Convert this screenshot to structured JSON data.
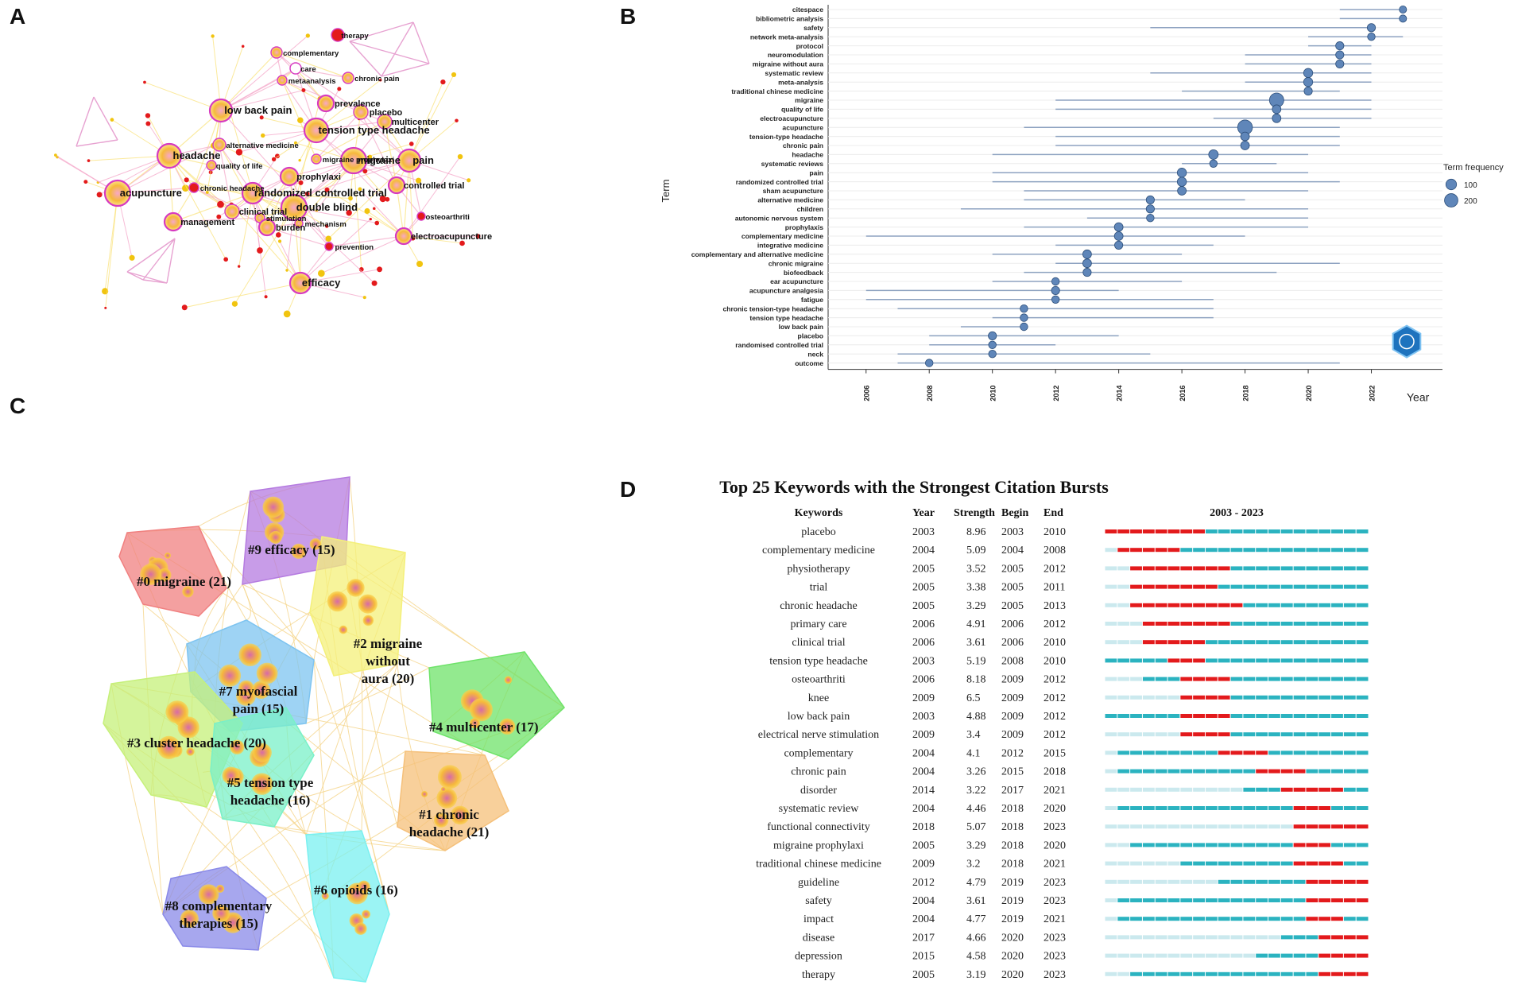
{
  "panels": {
    "a": "A",
    "b": "B",
    "c": "C",
    "d": "D"
  },
  "chart_data": [
    {
      "type": "network",
      "panel": "A",
      "nodes": [
        {
          "label": "therapy",
          "size": 8,
          "color": "#e31a1c"
        },
        {
          "label": "complementary",
          "size": 7,
          "color": "#f6b93b"
        },
        {
          "label": "care",
          "size": 7,
          "color": "#e84393"
        },
        {
          "label": "chronic pain",
          "size": 7,
          "color": "#f6b93b"
        },
        {
          "label": "metaanalysis",
          "size": 6,
          "color": "#f6b93b"
        },
        {
          "label": "low back pain",
          "size": 14,
          "color": "#f6b93b"
        },
        {
          "label": "prevalence",
          "size": 10,
          "color": "#f6b93b"
        },
        {
          "label": "placebo",
          "size": 9,
          "color": "#f6b93b"
        },
        {
          "label": "multicenter",
          "size": 9,
          "color": "#f6b93b"
        },
        {
          "label": "tension type headache",
          "size": 15,
          "color": "#f6b93b"
        },
        {
          "label": "alternative medicine",
          "size": 8,
          "color": "#f6b93b"
        },
        {
          "label": "headache",
          "size": 15,
          "color": "#f6b93b"
        },
        {
          "label": "migraine prophylaxi",
          "size": 6,
          "color": "#f6b93b"
        },
        {
          "label": "migraine",
          "size": 16,
          "color": "#f6b93b"
        },
        {
          "label": "pain",
          "size": 14,
          "color": "#f6b93b"
        },
        {
          "label": "quality of life",
          "size": 6,
          "color": "#f6b93b"
        },
        {
          "label": "prophylaxi",
          "size": 11,
          "color": "#f6b93b"
        },
        {
          "label": "chronic headache",
          "size": 6,
          "color": "#e31a1c"
        },
        {
          "label": "acupuncture",
          "size": 16,
          "color": "#f6b93b"
        },
        {
          "label": "randomized controlled trial",
          "size": 13,
          "color": "#f6b93b"
        },
        {
          "label": "controlled trial",
          "size": 10,
          "color": "#f6b93b"
        },
        {
          "label": "clinical trial",
          "size": 9,
          "color": "#f6b93b"
        },
        {
          "label": "double blind",
          "size": 16,
          "color": "#f6b93b"
        },
        {
          "label": "management",
          "size": 11,
          "color": "#f6b93b"
        },
        {
          "label": "stimulation",
          "size": 6,
          "color": "#f6b93b"
        },
        {
          "label": "osteoarthriti",
          "size": 5,
          "color": "#e31a1c"
        },
        {
          "label": "burden",
          "size": 10,
          "color": "#f6b93b"
        },
        {
          "label": "mechanism",
          "size": 5,
          "color": "#f6b93b"
        },
        {
          "label": "electroacupuncture",
          "size": 10,
          "color": "#f6b93b"
        },
        {
          "label": "prevention",
          "size": 5,
          "color": "#e31a1c"
        },
        {
          "label": "efficacy",
          "size": 13,
          "color": "#f6b93b"
        }
      ]
    },
    {
      "type": "timeline",
      "panel": "B",
      "ylabel": "Term",
      "xlabel": "Year",
      "xlim": [
        2005,
        2024
      ],
      "xticks": [
        "2006",
        "2008",
        "2010",
        "2012",
        "2014",
        "2016",
        "2018",
        "2020",
        "2022"
      ],
      "legend": {
        "title": "Term frequency",
        "entries": [
          "100",
          "200"
        ]
      },
      "terms": [
        {
          "term": "citespace",
          "start": 2021,
          "end": 2023,
          "peak": 2023,
          "freq": 25
        },
        {
          "term": "bibliometric analysis",
          "start": 2021,
          "end": 2023,
          "peak": 2023,
          "freq": 25
        },
        {
          "term": "safety",
          "start": 2015,
          "end": 2022,
          "peak": 2022,
          "freq": 40
        },
        {
          "term": "network meta-analysis",
          "start": 2020,
          "end": 2023,
          "peak": 2022,
          "freq": 30
        },
        {
          "term": "protocol",
          "start": 2020,
          "end": 2022,
          "peak": 2021,
          "freq": 40
        },
        {
          "term": "neuromodulation",
          "start": 2018,
          "end": 2022,
          "peak": 2021,
          "freq": 40
        },
        {
          "term": "migraine without aura",
          "start": 2018,
          "end": 2022,
          "peak": 2021,
          "freq": 40
        },
        {
          "term": "systematic review",
          "start": 2015,
          "end": 2022,
          "peak": 2020,
          "freq": 60
        },
        {
          "term": "meta-analysis",
          "start": 2018,
          "end": 2022,
          "peak": 2020,
          "freq": 60
        },
        {
          "term": "traditional chinese medicine",
          "start": 2016,
          "end": 2021,
          "peak": 2020,
          "freq": 40
        },
        {
          "term": "migraine",
          "start": 2012,
          "end": 2022,
          "peak": 2019,
          "freq": 240
        },
        {
          "term": "quality of life",
          "start": 2012,
          "end": 2022,
          "peak": 2019,
          "freq": 50
        },
        {
          "term": "electroacupuncture",
          "start": 2017,
          "end": 2022,
          "peak": 2019,
          "freq": 50
        },
        {
          "term": "acupuncture",
          "start": 2011,
          "end": 2021,
          "peak": 2018,
          "freq": 260
        },
        {
          "term": "tension-type headache",
          "start": 2012,
          "end": 2021,
          "peak": 2018,
          "freq": 50
        },
        {
          "term": "chronic pain",
          "start": 2012,
          "end": 2021,
          "peak": 2018,
          "freq": 50
        },
        {
          "term": "headache",
          "start": 2010,
          "end": 2020,
          "peak": 2017,
          "freq": 70
        },
        {
          "term": "systematic reviews",
          "start": 2016,
          "end": 2019,
          "peak": 2017,
          "freq": 30
        },
        {
          "term": "pain",
          "start": 2010,
          "end": 2020,
          "peak": 2016,
          "freq": 60
        },
        {
          "term": "randomized controlled trial",
          "start": 2010,
          "end": 2021,
          "peak": 2016,
          "freq": 60
        },
        {
          "term": "sham acupuncture",
          "start": 2011,
          "end": 2020,
          "peak": 2016,
          "freq": 50
        },
        {
          "term": "alternative medicine",
          "start": 2011,
          "end": 2018,
          "peak": 2015,
          "freq": 40
        },
        {
          "term": "children",
          "start": 2009,
          "end": 2020,
          "peak": 2015,
          "freq": 40
        },
        {
          "term": "autonomic nervous system",
          "start": 2013,
          "end": 2020,
          "peak": 2015,
          "freq": 30
        },
        {
          "term": "prophylaxis",
          "start": 2011,
          "end": 2020,
          "peak": 2014,
          "freq": 50
        },
        {
          "term": "complementary medicine",
          "start": 2006,
          "end": 2018,
          "peak": 2014,
          "freq": 50
        },
        {
          "term": "integrative medicine",
          "start": 2012,
          "end": 2017,
          "peak": 2014,
          "freq": 40
        },
        {
          "term": "complementary and alternative medicine",
          "start": 2010,
          "end": 2016,
          "peak": 2013,
          "freq": 50
        },
        {
          "term": "chronic migraine",
          "start": 2012,
          "end": 2021,
          "peak": 2013,
          "freq": 50
        },
        {
          "term": "biofeedback",
          "start": 2011,
          "end": 2019,
          "peak": 2013,
          "freq": 40
        },
        {
          "term": "ear acupuncture",
          "start": 2010,
          "end": 2016,
          "peak": 2012,
          "freq": 30
        },
        {
          "term": "acupuncture analgesia",
          "start": 2006,
          "end": 2014,
          "peak": 2012,
          "freq": 40
        },
        {
          "term": "fatigue",
          "start": 2006,
          "end": 2017,
          "peak": 2012,
          "freq": 30
        },
        {
          "term": "chronic tension-type headache",
          "start": 2007,
          "end": 2017,
          "peak": 2011,
          "freq": 30
        },
        {
          "term": "tension type headache",
          "start": 2010,
          "end": 2017,
          "peak": 2011,
          "freq": 30
        },
        {
          "term": "low back pain",
          "start": 2009,
          "end": 2011,
          "peak": 2011,
          "freq": 30
        },
        {
          "term": "placebo",
          "start": 2008,
          "end": 2014,
          "peak": 2010,
          "freq": 40
        },
        {
          "term": "randomised controlled trial",
          "start": 2008,
          "end": 2012,
          "peak": 2010,
          "freq": 30
        },
        {
          "term": "neck",
          "start": 2007,
          "end": 2015,
          "peak": 2010,
          "freq": 30
        },
        {
          "term": "outcome",
          "start": 2007,
          "end": 2021,
          "peak": 2008,
          "freq": 30
        }
      ]
    },
    {
      "type": "cluster-map",
      "panel": "C",
      "clusters": [
        {
          "label": "#0 migraine (21)",
          "color": "#f08080"
        },
        {
          "label": "#9 efficacy (15)",
          "color": "#b57be0"
        },
        {
          "label": "#2 migraine without aura (20)",
          "color": "#f4f07a"
        },
        {
          "label": "#7 myofascial pain (15)",
          "color": "#7ec4f0"
        },
        {
          "label": "#4 multicenter (17)",
          "color": "#6fe36a"
        },
        {
          "label": "#3 cluster headache (20)",
          "color": "#c6f07a"
        },
        {
          "label": "#5 tension type headache (16)",
          "color": "#7af0c8"
        },
        {
          "label": "#1 chronic headache (21)",
          "color": "#f5c07a"
        },
        {
          "label": "#6 opioids (16)",
          "color": "#7af0f0"
        },
        {
          "label": "#8 complementary therapies (15)",
          "color": "#8a8ae8"
        }
      ]
    },
    {
      "type": "table",
      "panel": "D",
      "title": "Top 25 Keywords with the Strongest Citation Bursts",
      "headers": {
        "keywords": "Keywords",
        "year": "Year",
        "strength": "Strength",
        "begin": "Begin",
        "end": "End",
        "range": "2003 - 2023"
      },
      "range_start": 2003,
      "range_end": 2023,
      "rows": [
        {
          "keyword": "placebo",
          "year": 2003,
          "strength": "8.96",
          "begin": 2003,
          "end": 2010
        },
        {
          "keyword": "complementary medicine",
          "year": 2004,
          "strength": "5.09",
          "begin": 2004,
          "end": 2008
        },
        {
          "keyword": "physiotherapy",
          "year": 2005,
          "strength": "3.52",
          "begin": 2005,
          "end": 2012
        },
        {
          "keyword": "trial",
          "year": 2005,
          "strength": "3.38",
          "begin": 2005,
          "end": 2011
        },
        {
          "keyword": "chronic headache",
          "year": 2005,
          "strength": "3.29",
          "begin": 2005,
          "end": 2013
        },
        {
          "keyword": "primary care",
          "year": 2006,
          "strength": "4.91",
          "begin": 2006,
          "end": 2012
        },
        {
          "keyword": "clinical trial",
          "year": 2006,
          "strength": "3.61",
          "begin": 2006,
          "end": 2010
        },
        {
          "keyword": "tension type headache",
          "year": 2003,
          "strength": "5.19",
          "begin": 2008,
          "end": 2010
        },
        {
          "keyword": "osteoarthriti",
          "year": 2006,
          "strength": "8.18",
          "begin": 2009,
          "end": 2012
        },
        {
          "keyword": "knee",
          "year": 2009,
          "strength": "6.5",
          "begin": 2009,
          "end": 2012
        },
        {
          "keyword": "low back pain",
          "year": 2003,
          "strength": "4.88",
          "begin": 2009,
          "end": 2012
        },
        {
          "keyword": "electrical nerve stimulation",
          "year": 2009,
          "strength": "3.4",
          "begin": 2009,
          "end": 2012
        },
        {
          "keyword": "complementary",
          "year": 2004,
          "strength": "4.1",
          "begin": 2012,
          "end": 2015
        },
        {
          "keyword": "chronic pain",
          "year": 2004,
          "strength": "3.26",
          "begin": 2015,
          "end": 2018
        },
        {
          "keyword": "disorder",
          "year": 2014,
          "strength": "3.22",
          "begin": 2017,
          "end": 2021
        },
        {
          "keyword": "systematic review",
          "year": 2004,
          "strength": "4.46",
          "begin": 2018,
          "end": 2020
        },
        {
          "keyword": "functional connectivity",
          "year": 2018,
          "strength": "5.07",
          "begin": 2018,
          "end": 2023
        },
        {
          "keyword": "migraine prophylaxi",
          "year": 2005,
          "strength": "3.29",
          "begin": 2018,
          "end": 2020
        },
        {
          "keyword": "traditional chinese medicine",
          "year": 2009,
          "strength": "3.2",
          "begin": 2018,
          "end": 2021
        },
        {
          "keyword": "guideline",
          "year": 2012,
          "strength": "4.79",
          "begin": 2019,
          "end": 2023
        },
        {
          "keyword": "safety",
          "year": 2004,
          "strength": "3.61",
          "begin": 2019,
          "end": 2023
        },
        {
          "keyword": "impact",
          "year": 2004,
          "strength": "4.77",
          "begin": 2019,
          "end": 2021
        },
        {
          "keyword": "disease",
          "year": 2017,
          "strength": "4.66",
          "begin": 2020,
          "end": 2023
        },
        {
          "keyword": "depression",
          "year": 2015,
          "strength": "4.58",
          "begin": 2020,
          "end": 2023
        },
        {
          "keyword": "therapy",
          "year": 2005,
          "strength": "3.19",
          "begin": 2020,
          "end": 2023
        }
      ]
    }
  ]
}
